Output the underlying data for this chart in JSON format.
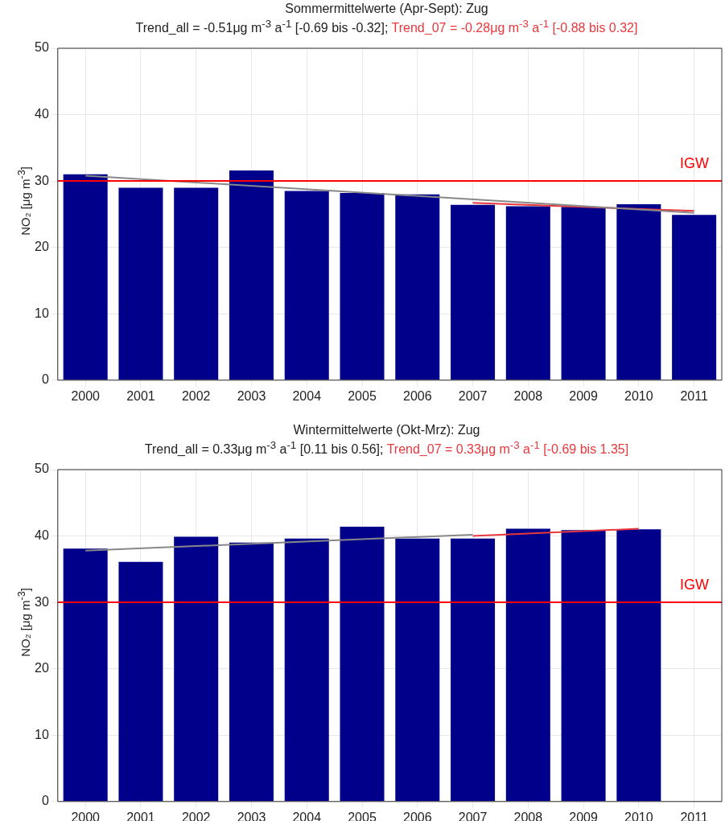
{
  "chart_data": [
    {
      "type": "bar",
      "title": "Sommermittelwerte (Apr-Sept): Zug",
      "subtitle": "Trend_all = -0.51μg m$^{-3}$ a$^{-1}$ [-0.69 bis -0.32]; ",
      "annotations": [
        "Trend_07 = -0.28μg m$^{-3}$ a$^{-1}$ [-0.88 bis 0.32]"
      ],
      "ylabel": "NO₂ [μg m$^{-3}$]",
      "categories": [
        "2000",
        "2001",
        "2002",
        "2003",
        "2004",
        "2005",
        "2006",
        "2007",
        "2008",
        "2009",
        "2010",
        "2011"
      ],
      "series": [
        {
          "color": "#00008b",
          "values": [
            31.0,
            29.0,
            29.0,
            31.6,
            28.5,
            28.2,
            28.0,
            26.4,
            26.2,
            26.1,
            26.5,
            24.9
          ]
        },
        {
          "type": "line",
          "color": "#888888",
          "values": [
            30.8,
            null,
            null,
            null,
            null,
            null,
            null,
            null,
            null,
            null,
            null,
            25.2
          ]
        },
        {
          "type": "line",
          "color": "#e8383d",
          "values": [
            null,
            null,
            null,
            null,
            null,
            null,
            null,
            26.7,
            null,
            null,
            null,
            25.5
          ]
        }
      ],
      "ylim": [
        0,
        50
      ],
      "yticks": [
        0,
        10,
        20,
        30,
        40,
        50
      ],
      "grid": true,
      "marker": "none",
      "ref_lines": [
        {
          "axis": "y",
          "value": 30,
          "label": "IGW",
          "color": "#ff0000"
        }
      ]
    },
    {
      "type": "bar",
      "title": "Wintermittelwerte (Okt-Mrz): Zug",
      "subtitle": "Trend_all = 0.33μg m$^{-3}$ a$^{-1}$ [0.11 bis 0.56]; ",
      "annotations": [
        "Trend_07 = 0.33μg m$^{-3}$ a$^{-1}$ [-0.69 bis 1.35]"
      ],
      "ylabel": "NO₂ [μg m$^{-3}$]",
      "categories": [
        "2000",
        "2001",
        "2002",
        "2003",
        "2004",
        "2005",
        "2006",
        "2007",
        "2008",
        "2009",
        "2010",
        "2011"
      ],
      "series": [
        {
          "color": "#00008b",
          "values": [
            38.1,
            36.1,
            39.9,
            39.0,
            39.6,
            41.4,
            39.6,
            39.6,
            41.1,
            40.9,
            41.0,
            null
          ]
        },
        {
          "type": "line",
          "color": "#888888",
          "values": [
            37.8,
            null,
            null,
            null,
            null,
            null,
            null,
            40.2,
            null,
            null,
            null,
            null
          ]
        },
        {
          "type": "line",
          "color": "#e8383d",
          "values": [
            null,
            null,
            null,
            null,
            null,
            null,
            null,
            40.0,
            null,
            null,
            41.1,
            null
          ]
        }
      ],
      "ylim": [
        0,
        50
      ],
      "yticks": [
        0,
        10,
        20,
        30,
        40,
        50
      ],
      "grid": true,
      "marker": "none",
      "ref_lines": [
        {
          "axis": "y",
          "value": 30,
          "label": "IGW",
          "color": "#ff0000"
        }
      ]
    }
  ]
}
